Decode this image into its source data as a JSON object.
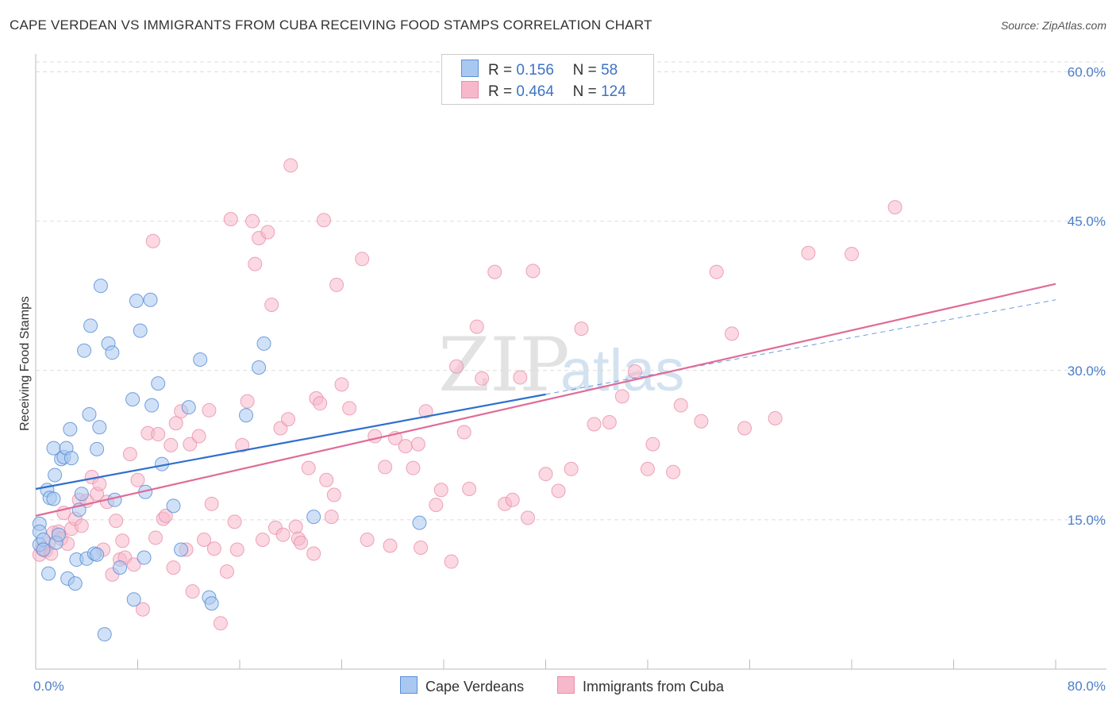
{
  "title": "CAPE VERDEAN VS IMMIGRANTS FROM CUBA RECEIVING FOOD STAMPS CORRELATION CHART",
  "source": "Source: ZipAtlas.com",
  "watermark": {
    "zip": "ZIP",
    "atlas": "atlas"
  },
  "legend": {
    "r_label": "R =",
    "n_label": "N =",
    "rows": [
      {
        "r": "0.156",
        "n": "58"
      },
      {
        "r": "0.464",
        "n": "124"
      }
    ]
  },
  "colors": {
    "blue_fill": "#a9c8f0",
    "blue_stroke": "#5b8fd6",
    "blue_line": "#2e6fcf",
    "pink_fill": "#f7b8cb",
    "pink_stroke": "#e98fab",
    "pink_line": "#e06b96",
    "grid": "#dddddd",
    "tick": "#4a7ec9"
  },
  "chart_data": {
    "type": "scatter",
    "title": "CAPE VERDEAN VS IMMIGRANTS FROM CUBA RECEIVING FOOD STAMPS CORRELATION CHART",
    "xlabel": "",
    "ylabel": "Receiving Food Stamps",
    "xlim": [
      0,
      80
    ],
    "ylim": [
      0,
      61
    ],
    "x_tick_labels": [
      {
        "value": 0,
        "label": "0.0%"
      },
      {
        "value": 80,
        "label": "80.0%"
      }
    ],
    "y_tick_labels": [
      {
        "value": 15,
        "label": "15.0%"
      },
      {
        "value": 30,
        "label": "30.0%"
      },
      {
        "value": 45,
        "label": "45.0%"
      },
      {
        "value": 60,
        "label": "60.0%"
      }
    ],
    "series": [
      {
        "name": "Cape Verdeans",
        "r": 0.156,
        "n": 58,
        "trend": {
          "x0": 0,
          "y0": 18.1,
          "x1": 40,
          "y1": 27.6,
          "dash_to_x": 80,
          "dash_to_y": 37.1
        },
        "points": [
          [
            0.3,
            14.6
          ],
          [
            0.3,
            13.8
          ],
          [
            0.3,
            12.5
          ],
          [
            0.6,
            13.0
          ],
          [
            0.6,
            12.0
          ],
          [
            0.9,
            18.0
          ],
          [
            1.0,
            9.6
          ],
          [
            1.1,
            17.2
          ],
          [
            1.4,
            17.1
          ],
          [
            1.4,
            22.2
          ],
          [
            1.5,
            19.5
          ],
          [
            1.6,
            12.7
          ],
          [
            1.8,
            13.5
          ],
          [
            2.0,
            21.1
          ],
          [
            2.2,
            21.3
          ],
          [
            2.4,
            22.2
          ],
          [
            2.5,
            9.1
          ],
          [
            2.8,
            21.2
          ],
          [
            2.7,
            24.1
          ],
          [
            3.1,
            8.6
          ],
          [
            3.2,
            11.0
          ],
          [
            3.4,
            16.0
          ],
          [
            3.6,
            17.6
          ],
          [
            3.8,
            32.0
          ],
          [
            4.0,
            11.1
          ],
          [
            4.2,
            25.6
          ],
          [
            4.3,
            34.5
          ],
          [
            4.6,
            11.6
          ],
          [
            4.8,
            11.5
          ],
          [
            4.8,
            22.1
          ],
          [
            5.0,
            24.3
          ],
          [
            5.1,
            38.5
          ],
          [
            5.4,
            3.5
          ],
          [
            5.7,
            32.7
          ],
          [
            6.0,
            31.8
          ],
          [
            6.2,
            17.0
          ],
          [
            6.6,
            10.2
          ],
          [
            7.6,
            27.1
          ],
          [
            7.7,
            7.0
          ],
          [
            7.9,
            37.0
          ],
          [
            8.2,
            34.0
          ],
          [
            8.5,
            11.2
          ],
          [
            8.6,
            17.8
          ],
          [
            9.0,
            37.1
          ],
          [
            9.1,
            26.5
          ],
          [
            9.6,
            28.7
          ],
          [
            9.9,
            20.6
          ],
          [
            10.8,
            16.4
          ],
          [
            11.4,
            12.0
          ],
          [
            12.0,
            26.3
          ],
          [
            12.9,
            31.1
          ],
          [
            13.6,
            7.2
          ],
          [
            13.8,
            6.6
          ],
          [
            16.5,
            25.5
          ],
          [
            17.5,
            30.3
          ],
          [
            17.9,
            32.7
          ],
          [
            21.8,
            15.3
          ],
          [
            30.1,
            14.7
          ]
        ]
      },
      {
        "name": "Immigrants from Cuba",
        "r": 0.464,
        "n": 124,
        "trend": {
          "x0": 0,
          "y0": 15.4,
          "x1": 80,
          "y1": 38.7
        },
        "points": [
          [
            0.3,
            11.5
          ],
          [
            0.5,
            12.1
          ],
          [
            0.8,
            11.9
          ],
          [
            1.0,
            12.6
          ],
          [
            1.2,
            11.6
          ],
          [
            1.4,
            13.7
          ],
          [
            1.8,
            13.8
          ],
          [
            2.0,
            13.1
          ],
          [
            2.2,
            15.7
          ],
          [
            2.5,
            12.6
          ],
          [
            2.8,
            14.1
          ],
          [
            3.1,
            15.1
          ],
          [
            3.4,
            17.0
          ],
          [
            3.6,
            14.4
          ],
          [
            4.0,
            16.9
          ],
          [
            4.4,
            19.3
          ],
          [
            4.8,
            17.6
          ],
          [
            5.0,
            18.6
          ],
          [
            5.3,
            12.0
          ],
          [
            5.6,
            16.8
          ],
          [
            6.0,
            9.5
          ],
          [
            6.3,
            14.9
          ],
          [
            6.6,
            11.0
          ],
          [
            6.8,
            12.9
          ],
          [
            7.0,
            11.2
          ],
          [
            7.4,
            21.6
          ],
          [
            7.7,
            10.5
          ],
          [
            8.0,
            19.0
          ],
          [
            8.4,
            6.0
          ],
          [
            8.8,
            23.7
          ],
          [
            9.2,
            43.0
          ],
          [
            9.4,
            13.2
          ],
          [
            9.6,
            23.6
          ],
          [
            10.0,
            15.1
          ],
          [
            10.2,
            15.4
          ],
          [
            10.6,
            22.5
          ],
          [
            10.8,
            10.2
          ],
          [
            11.0,
            24.7
          ],
          [
            11.4,
            25.9
          ],
          [
            11.8,
            12.0
          ],
          [
            12.1,
            22.6
          ],
          [
            12.3,
            7.8
          ],
          [
            12.8,
            23.4
          ],
          [
            13.2,
            13.0
          ],
          [
            13.6,
            26.0
          ],
          [
            13.8,
            16.6
          ],
          [
            14.0,
            12.1
          ],
          [
            14.5,
            4.6
          ],
          [
            15.0,
            9.8
          ],
          [
            15.3,
            45.2
          ],
          [
            15.6,
            14.8
          ],
          [
            15.8,
            12.0
          ],
          [
            16.2,
            22.5
          ],
          [
            16.6,
            26.9
          ],
          [
            17.0,
            45.0
          ],
          [
            17.2,
            40.7
          ],
          [
            17.5,
            43.3
          ],
          [
            17.8,
            13.0
          ],
          [
            18.2,
            43.9
          ],
          [
            18.5,
            36.6
          ],
          [
            18.8,
            14.2
          ],
          [
            19.2,
            24.2
          ],
          [
            19.4,
            13.5
          ],
          [
            19.8,
            25.1
          ],
          [
            20.0,
            50.6
          ],
          [
            20.4,
            14.3
          ],
          [
            20.6,
            13.1
          ],
          [
            20.8,
            12.7
          ],
          [
            21.4,
            20.2
          ],
          [
            21.8,
            11.6
          ],
          [
            22.0,
            27.2
          ],
          [
            22.3,
            26.7
          ],
          [
            22.6,
            45.1
          ],
          [
            22.8,
            19.0
          ],
          [
            23.2,
            15.3
          ],
          [
            23.4,
            17.5
          ],
          [
            23.6,
            38.6
          ],
          [
            24.0,
            28.6
          ],
          [
            24.6,
            26.2
          ],
          [
            25.6,
            41.2
          ],
          [
            26.0,
            13.0
          ],
          [
            26.6,
            23.4
          ],
          [
            27.4,
            20.3
          ],
          [
            27.8,
            12.4
          ],
          [
            28.2,
            23.2
          ],
          [
            29.0,
            22.4
          ],
          [
            29.6,
            20.2
          ],
          [
            30.0,
            22.6
          ],
          [
            30.2,
            12.2
          ],
          [
            30.6,
            25.9
          ],
          [
            31.4,
            16.5
          ],
          [
            31.8,
            18.0
          ],
          [
            32.6,
            10.8
          ],
          [
            33.0,
            30.4
          ],
          [
            33.6,
            23.8
          ],
          [
            34.0,
            18.1
          ],
          [
            34.6,
            34.4
          ],
          [
            35.0,
            29.2
          ],
          [
            36.0,
            39.9
          ],
          [
            36.8,
            16.6
          ],
          [
            37.4,
            17.0
          ],
          [
            38.0,
            29.3
          ],
          [
            38.6,
            15.2
          ],
          [
            39.0,
            40.0
          ],
          [
            40.0,
            19.6
          ],
          [
            41.0,
            17.9
          ],
          [
            42.0,
            20.1
          ],
          [
            42.8,
            34.2
          ],
          [
            43.8,
            24.6
          ],
          [
            45.0,
            24.8
          ],
          [
            46.0,
            27.4
          ],
          [
            47.0,
            29.9
          ],
          [
            48.0,
            20.1
          ],
          [
            48.4,
            22.6
          ],
          [
            50.0,
            19.8
          ],
          [
            50.6,
            26.5
          ],
          [
            52.2,
            24.9
          ],
          [
            53.4,
            39.9
          ],
          [
            54.6,
            33.7
          ],
          [
            55.6,
            24.2
          ],
          [
            58.0,
            25.2
          ],
          [
            60.6,
            41.8
          ],
          [
            64.0,
            41.7
          ],
          [
            67.4,
            46.4
          ]
        ]
      }
    ]
  },
  "bottom_legend": [
    "Cape Verdeans",
    "Immigrants from Cuba"
  ]
}
